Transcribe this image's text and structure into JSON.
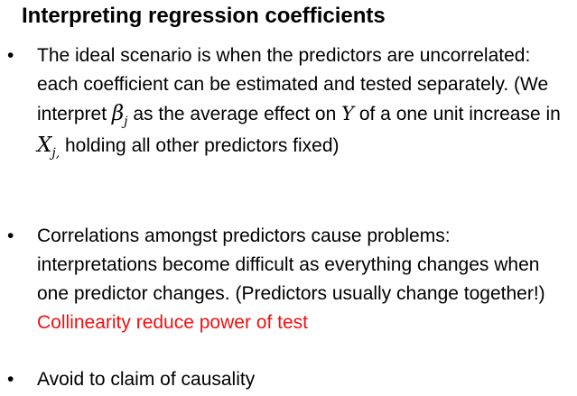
{
  "title": "Interpreting regression coefficients",
  "bullet_char": "•",
  "bullets": [
    {
      "part1": "The ideal scenario is when the predictors are uncorrelated:  each coefficient can be estimated and tested separately. (We interpret ",
      "beta_symbol": "β",
      "beta_subscript": "j",
      "part2": " as the average effect on ",
      "y_symbol": "Y",
      "part3": " of a one unit increase in ",
      "x_symbol": "X",
      "x_subscript": "j,",
      "part4": "  holding all other predictors fixed)"
    },
    {
      "text": "Correlations amongst predictors cause problems: interpretations become difficult as everything changes when one predictor changes. (Predictors usually change together!) ",
      "emphasis": "Collinearity reduce power of test",
      "emphasis_color": "#ee1111"
    },
    {
      "text": "Avoid to claim of causality"
    }
  ]
}
